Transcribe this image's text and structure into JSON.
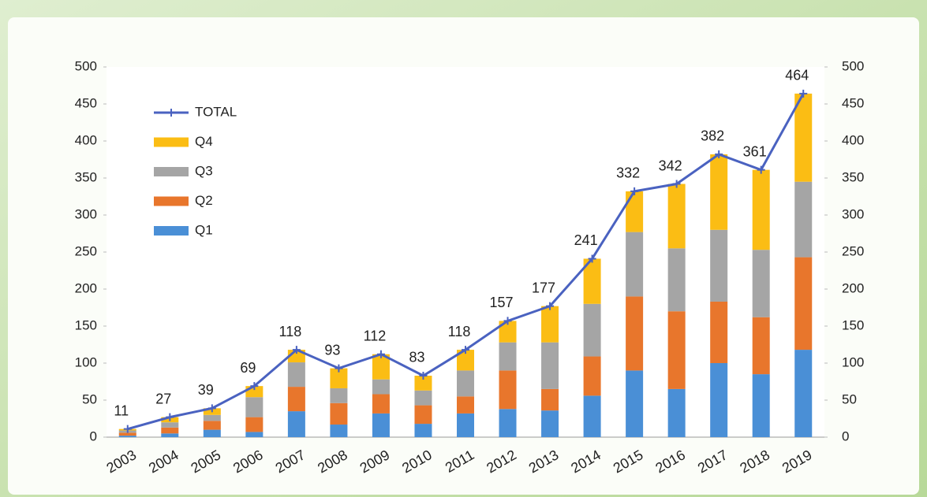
{
  "chart_data": {
    "type": "stacked-bar-line",
    "categories": [
      "2003",
      "2004",
      "2005",
      "2006",
      "2007",
      "2008",
      "2009",
      "2010",
      "2011",
      "2012",
      "2013",
      "2014",
      "2015",
      "2016",
      "2017",
      "2018",
      "2019"
    ],
    "series": [
      {
        "name": "Q1",
        "color": "#4a8fd6",
        "values": [
          2,
          5,
          10,
          7,
          35,
          17,
          32,
          18,
          32,
          38,
          36,
          56,
          90,
          65,
          100,
          85,
          118
        ]
      },
      {
        "name": "Q2",
        "color": "#e8762c",
        "values": [
          4,
          8,
          12,
          20,
          33,
          29,
          26,
          25,
          23,
          52,
          29,
          53,
          100,
          105,
          83,
          77,
          125
        ]
      },
      {
        "name": "Q3",
        "color": "#a5a5a5",
        "values": [
          3,
          7,
          8,
          27,
          33,
          20,
          20,
          20,
          35,
          38,
          63,
          71,
          87,
          85,
          97,
          91,
          102
        ]
      },
      {
        "name": "Q4",
        "color": "#fbbd14",
        "values": [
          2,
          7,
          9,
          15,
          17,
          27,
          34,
          20,
          28,
          29,
          49,
          61,
          55,
          87,
          102,
          108,
          119
        ]
      },
      {
        "name": "TOTAL",
        "color": "#4a62c0",
        "type": "line",
        "values": [
          11,
          27,
          39,
          69,
          118,
          93,
          112,
          83,
          118,
          157,
          177,
          241,
          332,
          342,
          382,
          361,
          464
        ]
      }
    ],
    "ylim": [
      0,
      500
    ],
    "yticks": [
      0,
      50,
      100,
      150,
      200,
      250,
      300,
      350,
      400,
      450,
      500
    ],
    "y2lim": [
      0,
      500
    ],
    "y2ticks": [
      0,
      50,
      100,
      150,
      200,
      250,
      300,
      350,
      400,
      450,
      500
    ],
    "legend": "upper left",
    "grid": false
  }
}
